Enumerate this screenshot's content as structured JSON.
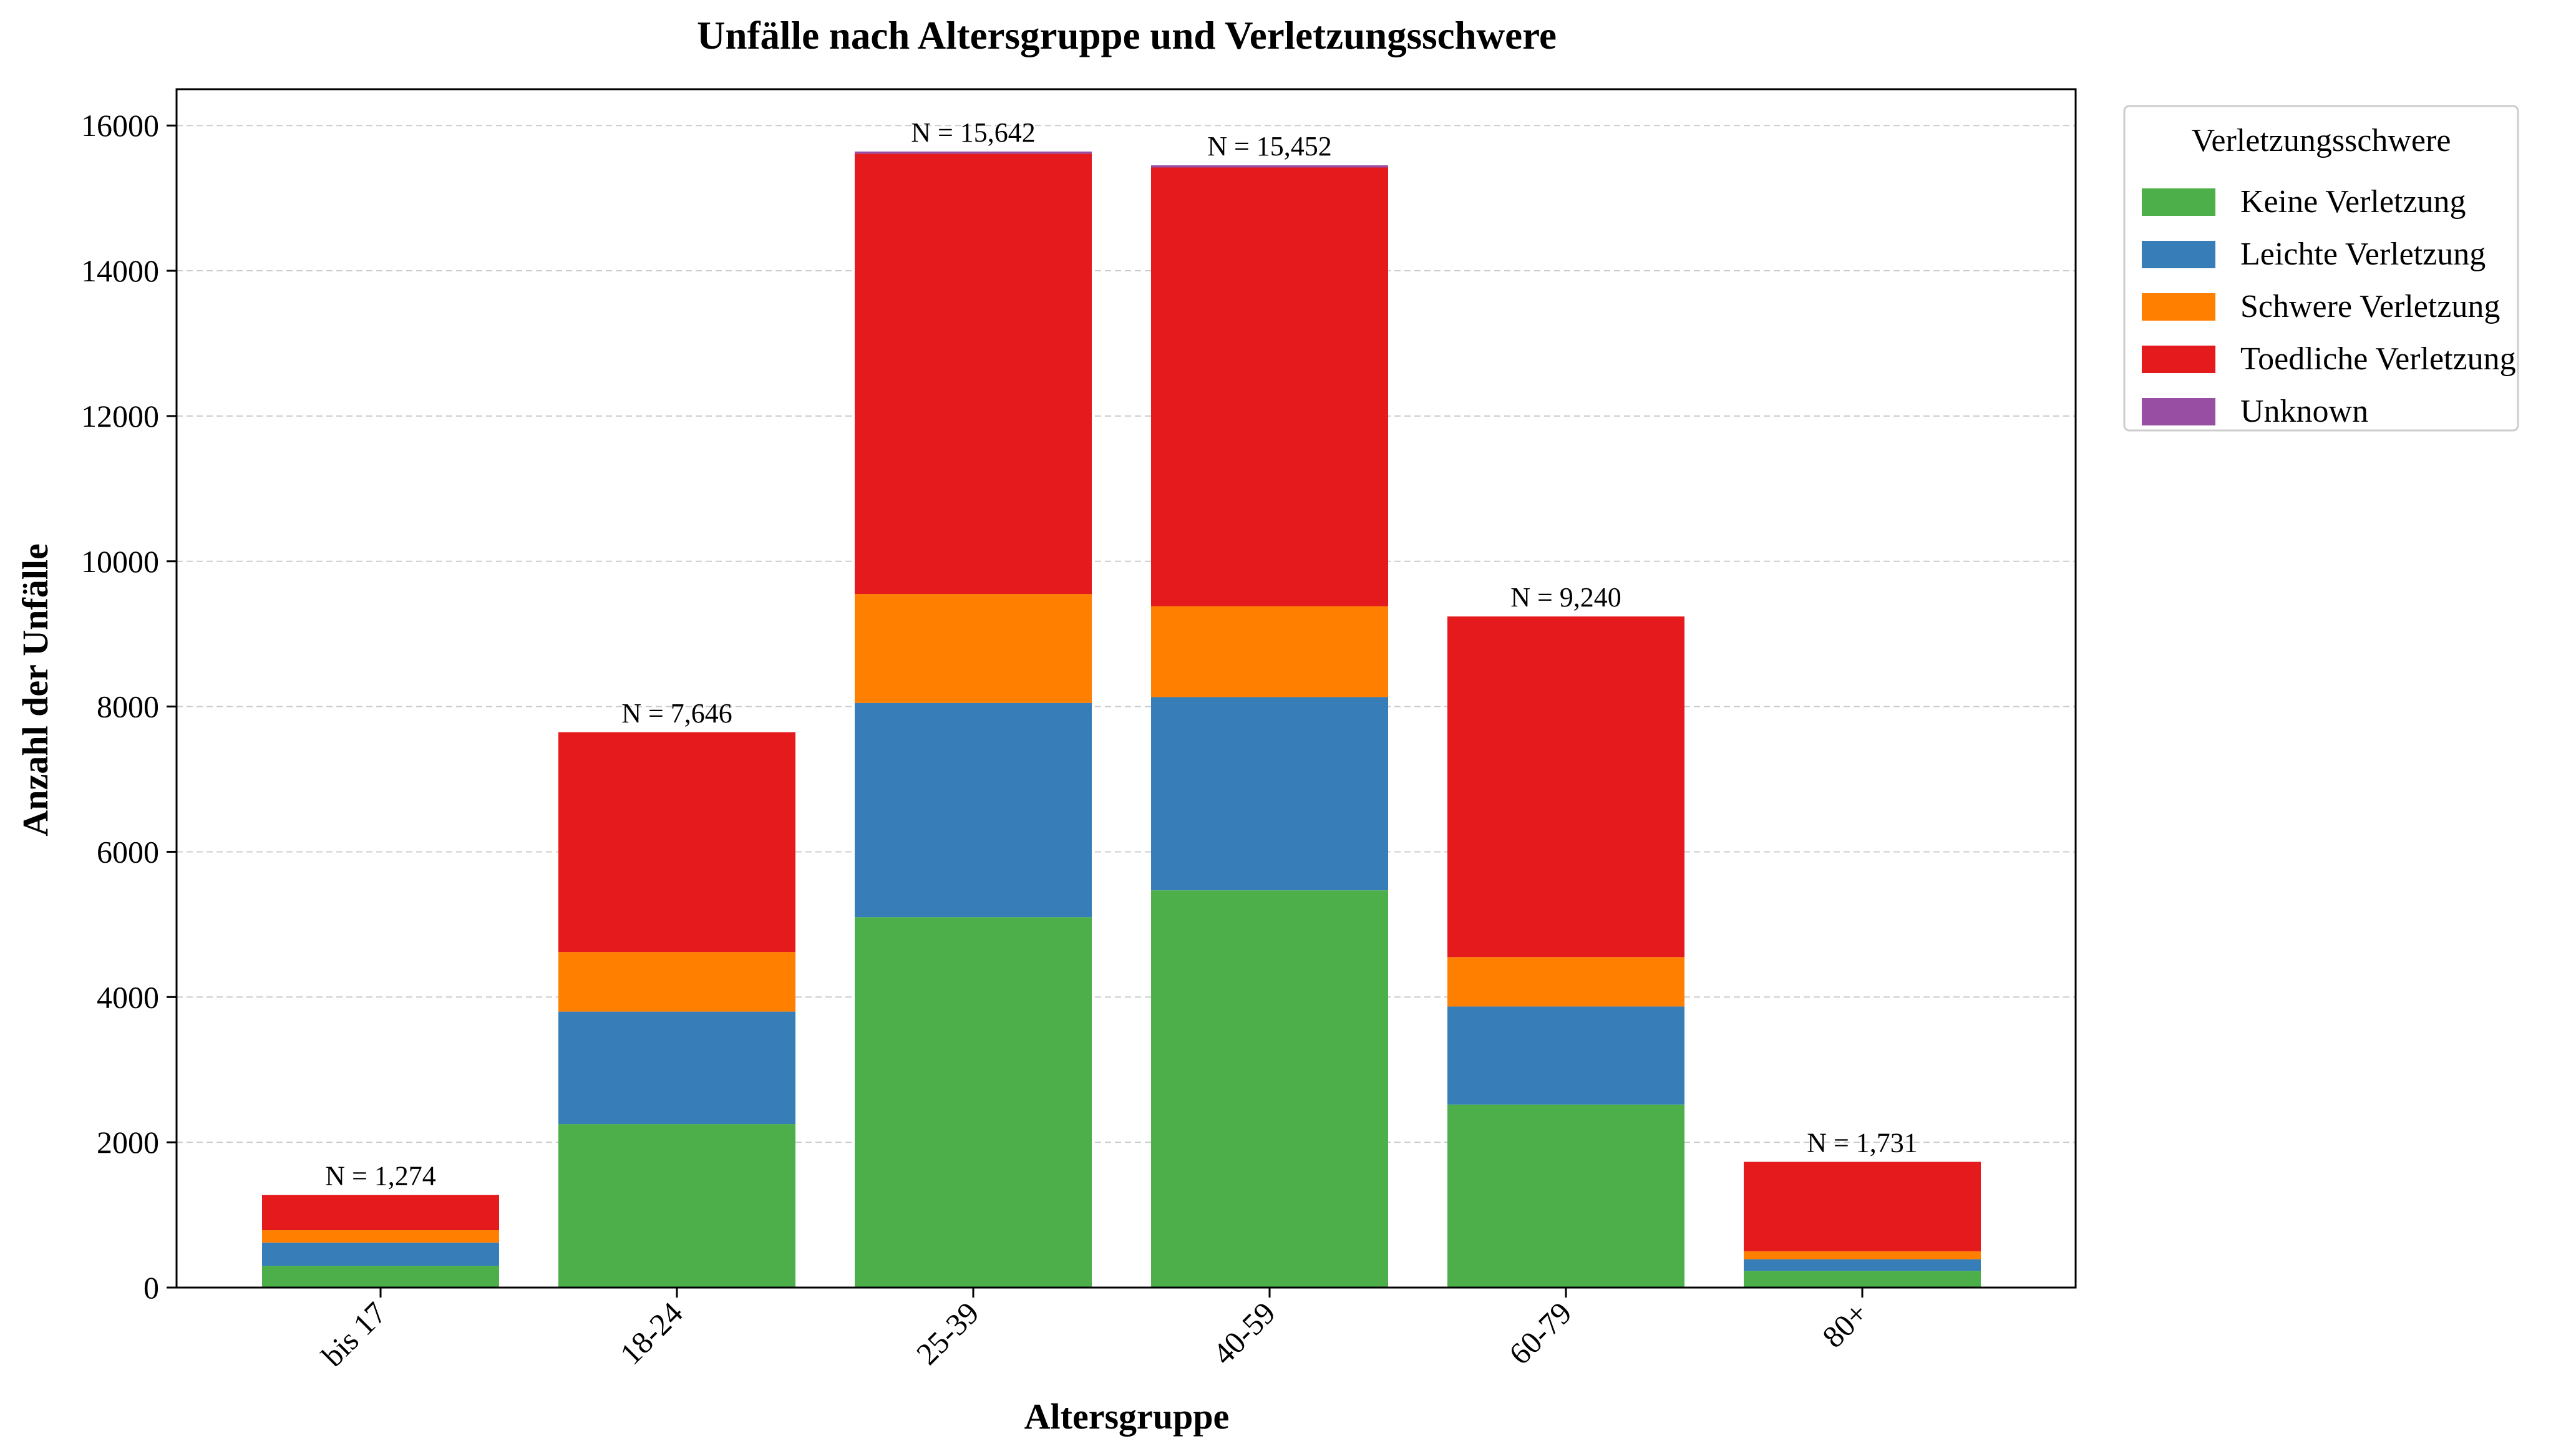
{
  "chart_data": {
    "type": "bar",
    "stacked": true,
    "title": "Unfälle nach Altersgruppe und Verletzungsschwere",
    "xlabel": "Altersgruppe",
    "ylabel": "Anzahl der Unfälle",
    "categories": [
      "bis 17",
      "18-24",
      "25-39",
      "40-59",
      "60-79",
      "80+"
    ],
    "ylim": [
      0,
      16500
    ],
    "yticks": [
      0,
      2000,
      4000,
      6000,
      8000,
      10000,
      12000,
      14000,
      16000
    ],
    "grid": "y-dashed",
    "legend_title": "Verletzungsschwere",
    "legend_position": "outside-top-right",
    "series": [
      {
        "name": "Keine Verletzung",
        "color": "#4daf4a",
        "values": [
          300,
          2250,
          5100,
          5470,
          2520,
          230
        ]
      },
      {
        "name": "Leichte Verletzung",
        "color": "#377eb8",
        "values": [
          320,
          1550,
          2950,
          2660,
          1350,
          160
        ]
      },
      {
        "name": "Schwere Verletzung",
        "color": "#ff7f00",
        "values": [
          170,
          820,
          1500,
          1250,
          680,
          110
        ]
      },
      {
        "name": "Toedliche Verletzung",
        "color": "#e41a1c",
        "values": [
          484,
          3026,
          6062,
          6042,
          4690,
          1231
        ]
      },
      {
        "name": "Unknown",
        "color": "#984ea3",
        "values": [
          0,
          0,
          30,
          30,
          0,
          0
        ]
      }
    ],
    "totals": [
      1274,
      7646,
      15642,
      15452,
      9240,
      1731
    ],
    "total_labels": [
      "N = 1,274",
      "N = 7,646",
      "N = 15,642",
      "N = 15,452",
      "N = 9,240",
      "N = 1,731"
    ]
  }
}
